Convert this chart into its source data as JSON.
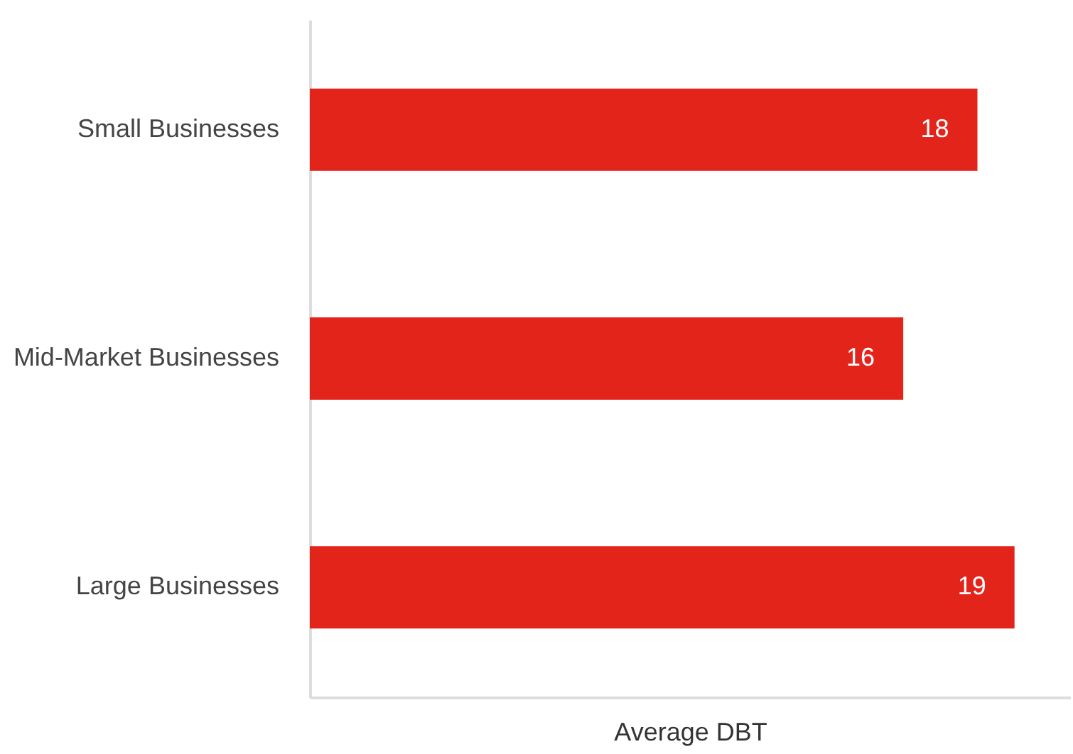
{
  "chart_data": {
    "type": "bar",
    "orientation": "horizontal",
    "xlabel": "Average DBT",
    "categories": [
      "Small Businesses",
      "Mid-Market Businesses",
      "Large Businesses"
    ],
    "values": [
      18,
      16,
      19
    ],
    "color": "#e3241b",
    "xlim": [
      0,
      20.5
    ],
    "data_labels": true,
    "tick_labels": "y"
  }
}
